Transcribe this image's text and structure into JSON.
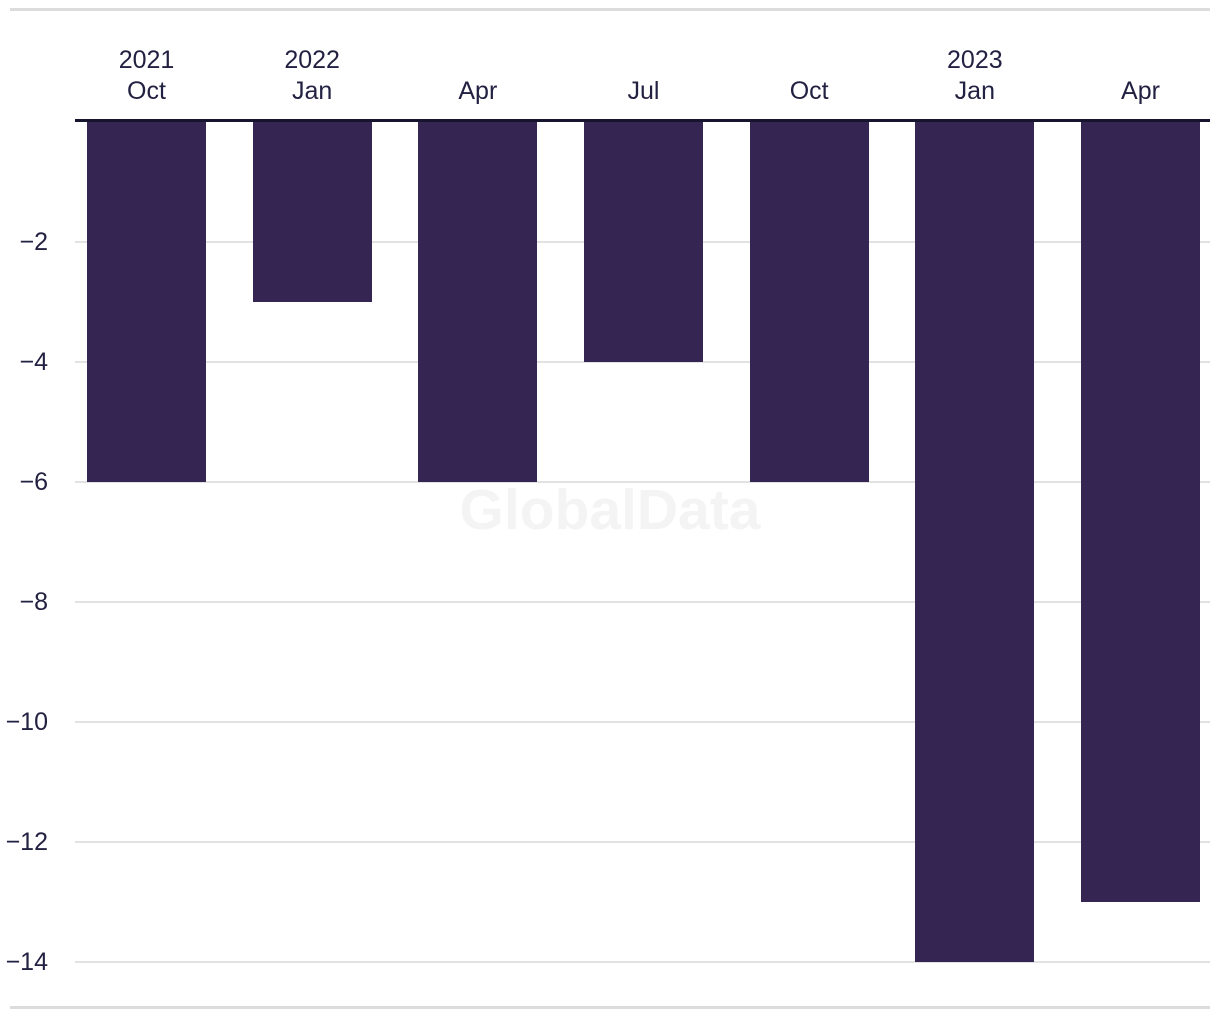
{
  "chart": {
    "watermark": "GlobalData"
  },
  "chart_data": {
    "type": "bar",
    "orientation": "vertical-negative",
    "title": "",
    "xlabel": "",
    "ylabel": "",
    "categories": [
      "2021 Oct",
      "2022 Jan",
      "2022 Apr",
      "2022 Jul",
      "2022 Oct",
      "2023 Jan",
      "2023 Apr"
    ],
    "x_tick_months": [
      "Oct",
      "Jan",
      "Apr",
      "Jul",
      "Oct",
      "Jan",
      "Apr"
    ],
    "x_tick_years": [
      "2021",
      "2022",
      "",
      "",
      "",
      "2023",
      ""
    ],
    "values": [
      -6,
      -3,
      -6,
      -4,
      -6,
      -14,
      -13
    ],
    "y_ticks": [
      -2,
      -4,
      -6,
      -8,
      -10,
      -12,
      -14
    ],
    "ylim": [
      -14.8,
      0
    ],
    "x_axis_position": "top",
    "grid": true,
    "legend": false,
    "bar_color": "#352552",
    "axis_line_color": "#16142e",
    "gridline_color": "#e2e2e2",
    "border_line_color": "#dcdcdc",
    "text_color": "#232142",
    "watermark_color": "#f4f4f4"
  }
}
